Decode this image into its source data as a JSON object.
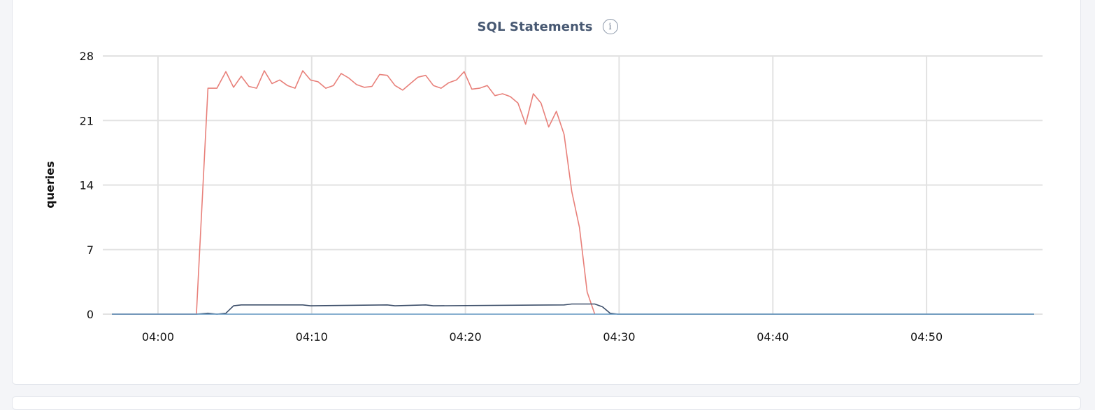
{
  "panel": {
    "title": "SQL Statements",
    "info_icon": "info-icon"
  },
  "colors": {
    "grid": "#e2e2e2",
    "series_red": "#e8807a",
    "series_dark": "#3d4f6a",
    "series_blue": "#6b9fc9"
  },
  "chart_data": {
    "type": "line",
    "title": "SQL Statements",
    "xlabel": "",
    "ylabel": "queries",
    "ylim": [
      0,
      28
    ],
    "yticks": [
      0,
      7,
      14,
      21,
      28
    ],
    "xlim": [
      "03:57",
      "04:57"
    ],
    "xticks": [
      "04:00",
      "04:10",
      "04:20",
      "04:30",
      "04:40",
      "04:50"
    ],
    "grid": true,
    "series": [
      {
        "color": "#e8807a",
        "x": [
          "03:57",
          "04:02:30",
          "04:03:15",
          "04:03:50",
          "04:04:25",
          "04:04:55",
          "04:05:25",
          "04:05:55",
          "04:06:25",
          "04:06:55",
          "04:07:25",
          "04:07:55",
          "04:08:25",
          "04:08:55",
          "04:09:25",
          "04:09:55",
          "04:10:25",
          "04:10:55",
          "04:11:25",
          "04:11:55",
          "04:12:25",
          "04:12:55",
          "04:13:25",
          "04:13:55",
          "04:14:25",
          "04:14:55",
          "04:15:25",
          "04:15:55",
          "04:16:25",
          "04:16:55",
          "04:17:25",
          "04:17:55",
          "04:18:25",
          "04:18:55",
          "04:19:25",
          "04:19:55",
          "04:20:25",
          "04:20:55",
          "04:21:25",
          "04:21:55",
          "04:22:25",
          "04:22:55",
          "04:23:25",
          "04:23:55",
          "04:24:25",
          "04:24:55",
          "04:25:25",
          "04:25:55",
          "04:26:25",
          "04:26:55",
          "04:27:25",
          "04:27:55",
          "04:28:25"
        ],
        "values": [
          0,
          0,
          24.5,
          24.5,
          26.3,
          24.6,
          25.8,
          24.7,
          24.5,
          26.4,
          25.0,
          25.4,
          24.8,
          24.5,
          26.4,
          25.4,
          25.2,
          24.5,
          24.8,
          26.1,
          25.6,
          24.9,
          24.6,
          24.7,
          26.0,
          25.9,
          24.8,
          24.3,
          25.0,
          25.7,
          25.9,
          24.8,
          24.5,
          25.1,
          25.4,
          26.3,
          24.4,
          24.5,
          24.8,
          23.7,
          23.9,
          23.6,
          22.9,
          20.6,
          23.9,
          22.9,
          20.3,
          22.0,
          19.5,
          13.3,
          9.4,
          2.4,
          0
        ]
      },
      {
        "color": "#3d4f6a",
        "x": [
          "03:57",
          "04:02:30",
          "04:03:15",
          "04:03:50",
          "04:04:25",
          "04:04:55",
          "04:05:25",
          "04:05:55",
          "04:09:25",
          "04:09:55",
          "04:14:55",
          "04:15:25",
          "04:17:25",
          "04:17:55",
          "04:26:25",
          "04:26:55",
          "04:28:25",
          "04:28:55",
          "04:29:25",
          "04:29:55",
          "04:57"
        ],
        "values": [
          0,
          0,
          0.1,
          0,
          0.1,
          0.9,
          1.0,
          1.0,
          1.0,
          0.9,
          1.0,
          0.9,
          1.0,
          0.9,
          1.0,
          1.1,
          1.1,
          0.8,
          0.1,
          0,
          0
        ]
      },
      {
        "color": "#6b9fc9",
        "x": [
          "03:57",
          "04:57"
        ],
        "values": [
          0,
          0
        ]
      }
    ]
  }
}
